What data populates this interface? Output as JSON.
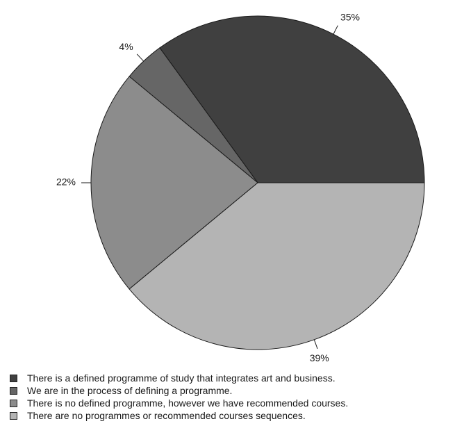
{
  "chart_data": {
    "type": "pie",
    "title": "",
    "slices": [
      {
        "label": "There is a defined programme of study that integrates art and business.",
        "value": 35,
        "value_label": "35%",
        "color": "#404040"
      },
      {
        "label": "We are in the process of defining a programme.",
        "value": 4,
        "value_label": "4%",
        "color": "#666666"
      },
      {
        "label": "There is no defined programme, however we have recommended courses.",
        "value": 22,
        "value_label": "22%",
        "color": "#8c8c8c"
      },
      {
        "label": "There are no programmes or recommended courses sequences.",
        "value": 39,
        "value_label": "39%",
        "color": "#b4b4b4"
      }
    ],
    "legend_position": "bottom",
    "start": "3 o'clock",
    "direction": "counterclockwise"
  }
}
